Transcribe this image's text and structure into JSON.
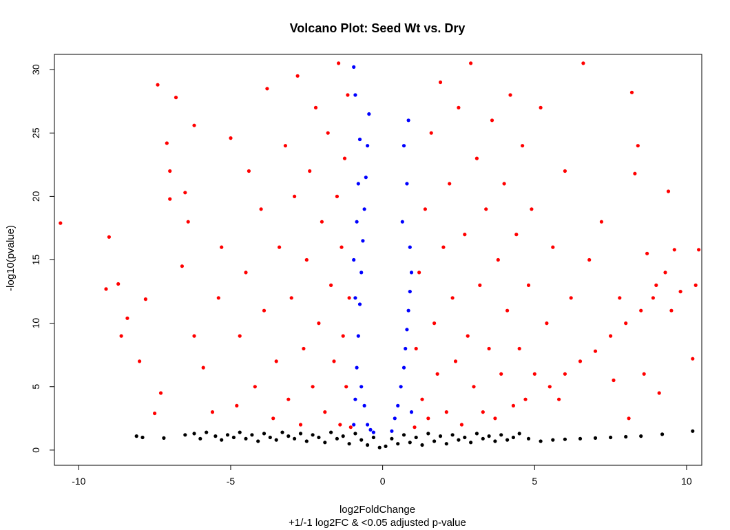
{
  "chart_data": {
    "type": "scatter",
    "title": "Volcano Plot: Seed Wt vs. Dry",
    "xlabel": "log2FoldChange",
    "subtitle": "+1/-1 log2FC & <0.05 adjusted p-value",
    "ylabel": "-log10(pvalue)",
    "xlim": [
      -10.8,
      10.5
    ],
    "ylim": [
      -1.2,
      31.2
    ],
    "x_ticks": [
      -10,
      -5,
      0,
      5,
      10
    ],
    "x_tick_labels": [
      "-10",
      "-5",
      "0",
      "5",
      "10"
    ],
    "y_ticks": [
      0,
      5,
      10,
      15,
      20,
      25,
      30
    ],
    "y_tick_labels": [
      "0",
      "5",
      "10",
      "15",
      "20",
      "25",
      "30"
    ],
    "grid": false,
    "legend": "none",
    "colors": {
      "not_significant": "#000000",
      "significant_small_fc": "#0000ff",
      "significant_large_fc": "#ff0000"
    },
    "series": [
      {
        "color": "#000000",
        "points": [
          [
            -8.1,
            1.1
          ],
          [
            -7.9,
            1.0
          ],
          [
            -7.2,
            0.95
          ],
          [
            -6.5,
            1.2
          ],
          [
            -6.2,
            1.3
          ],
          [
            -6.0,
            0.9
          ],
          [
            -5.8,
            1.4
          ],
          [
            -5.5,
            1.1
          ],
          [
            -5.3,
            0.8
          ],
          [
            -5.1,
            1.2
          ],
          [
            -4.9,
            1.0
          ],
          [
            -4.7,
            1.4
          ],
          [
            -4.5,
            0.9
          ],
          [
            -4.3,
            1.2
          ],
          [
            -4.1,
            0.7
          ],
          [
            -3.9,
            1.3
          ],
          [
            -3.7,
            1.0
          ],
          [
            -3.5,
            0.8
          ],
          [
            -3.3,
            1.4
          ],
          [
            -3.1,
            1.1
          ],
          [
            -2.9,
            0.9
          ],
          [
            -2.7,
            1.3
          ],
          [
            -2.5,
            0.7
          ],
          [
            -2.3,
            1.2
          ],
          [
            -2.1,
            1.0
          ],
          [
            -1.9,
            0.6
          ],
          [
            -1.7,
            1.4
          ],
          [
            -1.5,
            0.9
          ],
          [
            -1.3,
            1.1
          ],
          [
            -1.1,
            0.5
          ],
          [
            -0.9,
            1.3
          ],
          [
            -0.7,
            0.8
          ],
          [
            -0.5,
            0.4
          ],
          [
            -0.3,
            1.0
          ],
          [
            -0.1,
            0.2
          ],
          [
            0.1,
            0.3
          ],
          [
            0.3,
            0.9
          ],
          [
            0.5,
            0.5
          ],
          [
            0.7,
            1.2
          ],
          [
            0.9,
            0.6
          ],
          [
            1.1,
            1.0
          ],
          [
            1.3,
            0.4
          ],
          [
            1.5,
            1.3
          ],
          [
            1.7,
            0.7
          ],
          [
            1.9,
            1.1
          ],
          [
            2.1,
            0.5
          ],
          [
            2.3,
            1.2
          ],
          [
            2.5,
            0.8
          ],
          [
            2.7,
            1.0
          ],
          [
            2.9,
            0.6
          ],
          [
            3.1,
            1.3
          ],
          [
            3.3,
            0.9
          ],
          [
            3.5,
            1.1
          ],
          [
            3.7,
            0.7
          ],
          [
            3.9,
            1.2
          ],
          [
            4.1,
            0.8
          ],
          [
            4.3,
            1.0
          ],
          [
            4.5,
            1.3
          ],
          [
            4.8,
            0.9
          ],
          [
            5.2,
            0.7
          ],
          [
            5.6,
            0.8
          ],
          [
            6.0,
            0.85
          ],
          [
            6.5,
            0.9
          ],
          [
            7.0,
            0.95
          ],
          [
            7.5,
            1.0
          ],
          [
            8.0,
            1.05
          ],
          [
            8.5,
            1.1
          ],
          [
            9.2,
            1.25
          ],
          [
            10.2,
            1.5
          ]
        ]
      },
      {
        "color": "#0000ff",
        "points": [
          [
            -0.95,
            2.0
          ],
          [
            -0.9,
            4.0
          ],
          [
            -0.85,
            6.5
          ],
          [
            -0.8,
            9.0
          ],
          [
            -0.75,
            11.5
          ],
          [
            -0.7,
            14.0
          ],
          [
            -0.65,
            16.5
          ],
          [
            -0.6,
            19.0
          ],
          [
            -0.55,
            21.5
          ],
          [
            -0.5,
            24.0
          ],
          [
            -0.45,
            26.5
          ],
          [
            -0.9,
            12.0
          ],
          [
            -0.95,
            15.0
          ],
          [
            -0.85,
            18.0
          ],
          [
            -0.8,
            21.0
          ],
          [
            -0.75,
            24.5
          ],
          [
            -0.9,
            28.0
          ],
          [
            -0.95,
            30.2
          ],
          [
            -0.7,
            5.0
          ],
          [
            -0.6,
            3.5
          ],
          [
            -0.5,
            2.0
          ],
          [
            -0.4,
            1.6
          ],
          [
            -0.3,
            1.4
          ],
          [
            0.3,
            1.5
          ],
          [
            0.4,
            2.5
          ],
          [
            0.5,
            3.5
          ],
          [
            0.6,
            5.0
          ],
          [
            0.7,
            6.5
          ],
          [
            0.75,
            8.0
          ],
          [
            0.8,
            9.5
          ],
          [
            0.85,
            11.0
          ],
          [
            0.9,
            12.5
          ],
          [
            0.95,
            14.0
          ],
          [
            0.65,
            18.0
          ],
          [
            0.8,
            21.0
          ],
          [
            0.7,
            24.0
          ],
          [
            0.85,
            26.0
          ],
          [
            0.9,
            16.0
          ],
          [
            0.95,
            3.0
          ]
        ]
      },
      {
        "color": "#ff0000",
        "points": [
          [
            -10.6,
            17.9
          ],
          [
            -9.0,
            16.8
          ],
          [
            -9.1,
            12.7
          ],
          [
            -8.7,
            13.1
          ],
          [
            -8.6,
            9.0
          ],
          [
            -8.4,
            10.4
          ],
          [
            -8.0,
            7.0
          ],
          [
            -7.8,
            11.9
          ],
          [
            -7.5,
            2.9
          ],
          [
            -7.3,
            4.5
          ],
          [
            -7.1,
            24.2
          ],
          [
            -7.0,
            22.0
          ],
          [
            -7.0,
            19.8
          ],
          [
            -7.4,
            28.8
          ],
          [
            -6.8,
            27.8
          ],
          [
            -6.6,
            14.5
          ],
          [
            -6.5,
            20.3
          ],
          [
            -6.4,
            18.0
          ],
          [
            -6.2,
            25.6
          ],
          [
            -6.2,
            9.0
          ],
          [
            -5.9,
            6.5
          ],
          [
            -5.6,
            3.0
          ],
          [
            -5.4,
            12.0
          ],
          [
            -5.3,
            16.0
          ],
          [
            -5.0,
            24.6
          ],
          [
            -4.8,
            3.5
          ],
          [
            -4.7,
            9.0
          ],
          [
            -4.5,
            14.0
          ],
          [
            -4.4,
            22.0
          ],
          [
            -4.2,
            5.0
          ],
          [
            -4.0,
            19.0
          ],
          [
            -3.9,
            11.0
          ],
          [
            -3.8,
            28.5
          ],
          [
            -3.6,
            2.5
          ],
          [
            -3.5,
            7.0
          ],
          [
            -3.4,
            16.0
          ],
          [
            -3.2,
            24.0
          ],
          [
            -3.1,
            4.0
          ],
          [
            -3.0,
            12.0
          ],
          [
            -2.9,
            20.0
          ],
          [
            -2.8,
            29.5
          ],
          [
            -2.7,
            2.0
          ],
          [
            -2.6,
            8.0
          ],
          [
            -2.5,
            15.0
          ],
          [
            -2.4,
            22.0
          ],
          [
            -2.3,
            5.0
          ],
          [
            -2.2,
            27.0
          ],
          [
            -2.1,
            10.0
          ],
          [
            -2.0,
            18.0
          ],
          [
            -1.9,
            3.0
          ],
          [
            -1.8,
            25.0
          ],
          [
            -1.7,
            13.0
          ],
          [
            -1.6,
            7.0
          ],
          [
            -1.5,
            20.0
          ],
          [
            -1.45,
            30.5
          ],
          [
            -1.4,
            2.0
          ],
          [
            -1.35,
            16.0
          ],
          [
            -1.3,
            9.0
          ],
          [
            -1.25,
            23.0
          ],
          [
            -1.2,
            5.0
          ],
          [
            -1.15,
            28.0
          ],
          [
            -1.1,
            12.0
          ],
          [
            -1.05,
            1.8
          ],
          [
            1.05,
            1.8
          ],
          [
            1.1,
            8.0
          ],
          [
            1.2,
            14.0
          ],
          [
            1.3,
            4.0
          ],
          [
            1.4,
            19.0
          ],
          [
            1.5,
            2.5
          ],
          [
            1.6,
            25.0
          ],
          [
            1.7,
            10.0
          ],
          [
            1.8,
            6.0
          ],
          [
            1.9,
            29.0
          ],
          [
            2.0,
            16.0
          ],
          [
            2.1,
            3.0
          ],
          [
            2.2,
            21.0
          ],
          [
            2.3,
            12.0
          ],
          [
            2.4,
            7.0
          ],
          [
            2.5,
            27.0
          ],
          [
            2.6,
            2.0
          ],
          [
            2.7,
            17.0
          ],
          [
            2.8,
            9.0
          ],
          [
            2.9,
            30.5
          ],
          [
            3.0,
            5.0
          ],
          [
            3.1,
            23.0
          ],
          [
            3.2,
            13.0
          ],
          [
            3.3,
            3.0
          ],
          [
            3.4,
            19.0
          ],
          [
            3.5,
            8.0
          ],
          [
            3.6,
            26.0
          ],
          [
            3.7,
            2.5
          ],
          [
            3.8,
            15.0
          ],
          [
            3.9,
            6.0
          ],
          [
            4.0,
            21.0
          ],
          [
            4.1,
            11.0
          ],
          [
            4.2,
            28.0
          ],
          [
            4.3,
            3.5
          ],
          [
            4.4,
            17.0
          ],
          [
            4.5,
            8.0
          ],
          [
            4.6,
            24.0
          ],
          [
            4.7,
            4.0
          ],
          [
            4.8,
            13.0
          ],
          [
            4.9,
            19.0
          ],
          [
            5.0,
            6.0
          ],
          [
            5.2,
            27.0
          ],
          [
            5.4,
            10.0
          ],
          [
            5.5,
            5.0
          ],
          [
            5.6,
            16.0
          ],
          [
            5.8,
            4.0
          ],
          [
            6.0,
            22.0
          ],
          [
            6.0,
            6.0
          ],
          [
            6.2,
            12.0
          ],
          [
            6.5,
            7.0
          ],
          [
            6.6,
            30.5
          ],
          [
            6.8,
            15.0
          ],
          [
            7.0,
            7.8
          ],
          [
            7.2,
            18.0
          ],
          [
            7.5,
            9.0
          ],
          [
            7.6,
            5.5
          ],
          [
            7.8,
            12.0
          ],
          [
            8.0,
            10.0
          ],
          [
            8.1,
            2.5
          ],
          [
            8.2,
            28.2
          ],
          [
            8.3,
            21.8
          ],
          [
            8.4,
            24.0
          ],
          [
            8.5,
            11.0
          ],
          [
            8.6,
            6.0
          ],
          [
            8.7,
            15.5
          ],
          [
            8.9,
            12.0
          ],
          [
            9.0,
            13.0
          ],
          [
            9.1,
            4.5
          ],
          [
            9.3,
            14.0
          ],
          [
            9.4,
            20.4
          ],
          [
            9.5,
            11.0
          ],
          [
            9.6,
            15.8
          ],
          [
            9.8,
            12.5
          ],
          [
            10.2,
            7.2
          ],
          [
            10.3,
            13.0
          ],
          [
            10.4,
            15.8
          ]
        ]
      }
    ]
  }
}
